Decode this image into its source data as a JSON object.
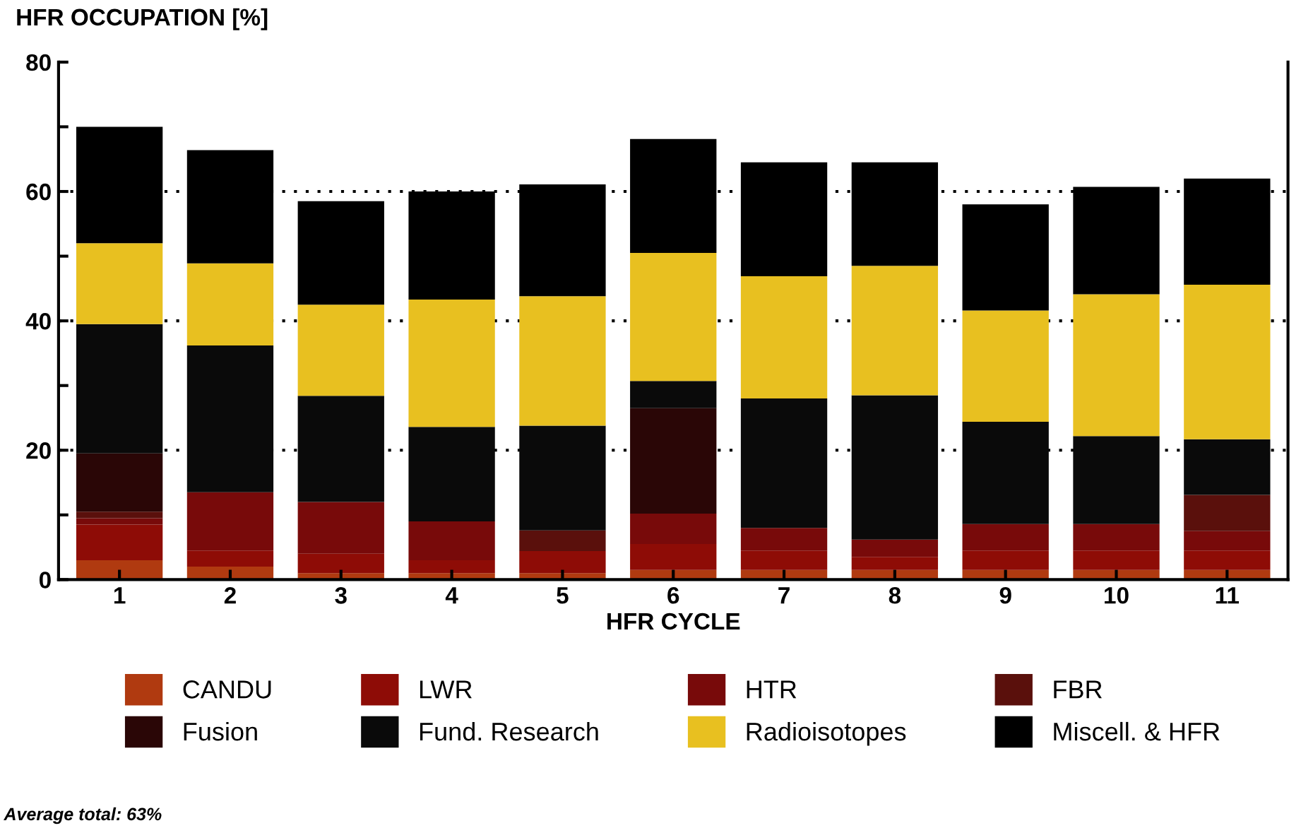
{
  "chart_data": {
    "type": "bar",
    "stacked": true,
    "ylabel": "HFR OCCUPATION [%]",
    "xlabel": "HFR CYCLE",
    "categories": [
      "1",
      "2",
      "3",
      "4",
      "5",
      "6",
      "7",
      "8",
      "9",
      "10",
      "11"
    ],
    "series": [
      {
        "name": "CANDU",
        "color": "#b03a10",
        "values": [
          3,
          2,
          1,
          1,
          1,
          1.5,
          1.5,
          1.5,
          1.5,
          1.5,
          1.5
        ]
      },
      {
        "name": "LWR",
        "color": "#8e0c06",
        "values": [
          5.5,
          2.5,
          3,
          2,
          3.4,
          4,
          3,
          2,
          3,
          3,
          3
        ]
      },
      {
        "name": "HTR",
        "color": "#780a0a",
        "values": [
          1,
          9,
          8,
          6,
          0,
          4.7,
          3.5,
          2.7,
          4.1,
          4.1,
          3
        ]
      },
      {
        "name": "FBR",
        "color": "#5a100c",
        "values": [
          1,
          0,
          0,
          0,
          3.2,
          0,
          0,
          0,
          0,
          0,
          5.6
        ]
      },
      {
        "name": "Fusion",
        "color": "#2a0606",
        "values": [
          9,
          0,
          0,
          0,
          0,
          16.3,
          0,
          0,
          0,
          0,
          0
        ]
      },
      {
        "name": "Fund. Research",
        "color": "#0a0a0a",
        "values": [
          20,
          22.7,
          16.4,
          14.6,
          16.2,
          4.2,
          20,
          22.3,
          15.8,
          13.6,
          8.6
        ]
      },
      {
        "name": "Radioisotopes",
        "color": "#e8c020",
        "values": [
          12.5,
          12.7,
          14.1,
          19.7,
          20,
          19.8,
          18.9,
          20,
          17.2,
          21.9,
          23.9
        ]
      },
      {
        "name": "Miscell. & HFR",
        "color": "#000000",
        "values": [
          18,
          17.5,
          16,
          16.7,
          17.3,
          17.6,
          17.6,
          16,
          16.4,
          16.6,
          16.4
        ]
      }
    ],
    "ylim": [
      0,
      80
    ],
    "yticks": [
      0,
      {
        "value": 10,
        "label": null
      },
      20,
      {
        "value": 30,
        "label": null
      },
      40,
      {
        "value": 50,
        "label": null
      },
      60,
      {
        "value": 70,
        "label": null
      },
      80
    ],
    "grid": "y",
    "legend": "bottom",
    "annotations": [
      "Average total: 63%"
    ]
  }
}
